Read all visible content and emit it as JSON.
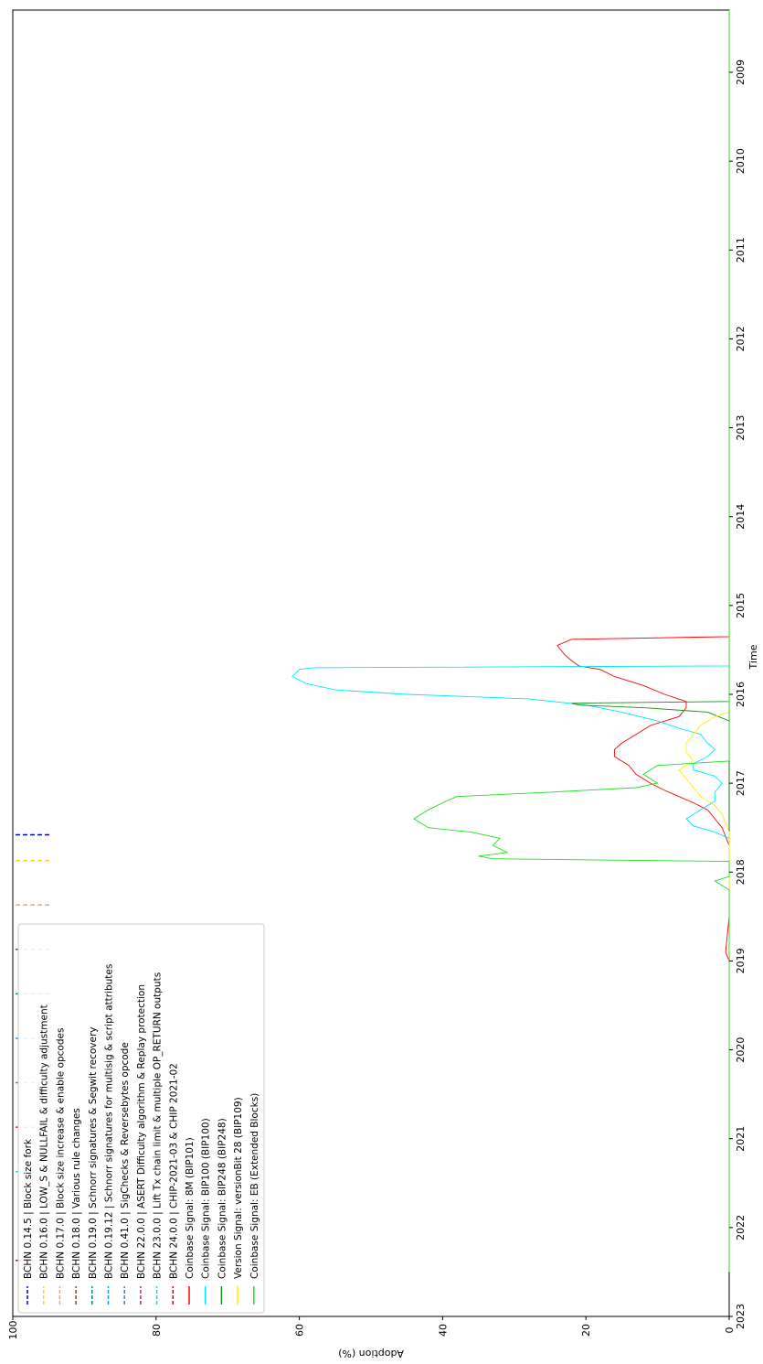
{
  "chart_data": {
    "type": "line",
    "title": "",
    "xlabel": "Time",
    "ylabel": "Adoption (%)",
    "xlim": [
      2008.3,
      2023.0
    ],
    "ylim": [
      0,
      100
    ],
    "x_ticks": [
      "2009",
      "2010",
      "2011",
      "2012",
      "2013",
      "2014",
      "2015",
      "2016",
      "2017",
      "2018",
      "2019",
      "2020",
      "2021",
      "2022",
      "2023"
    ],
    "y_ticks": [
      "0",
      "20",
      "40",
      "60",
      "80",
      "100"
    ],
    "grid": false,
    "orientation": "rotated 90° (time runs top-to-bottom along the right side)",
    "legend_position": "lower-left",
    "vertical_markers": [
      {
        "name": "BCHN 0.14.5 | Block size fork",
        "x": 2017.58,
        "color": "#0000cc"
      },
      {
        "name": "BCHN 0.16.0 | LOW_S & NULLFAIL & difficulty adjustment",
        "x": 2017.87,
        "color": "#ffd700"
      },
      {
        "name": "BCHN 0.17.0 | Block size increase & enable opcodes",
        "x": 2018.37,
        "color": "#f4a460"
      },
      {
        "name": "BCHN 0.18.0 | Various rule changes",
        "x": 2018.87,
        "color": "#8b4513"
      },
      {
        "name": "BCHN 0.19.0 | Schnorr signatures & Segwit recovery",
        "x": 2019.37,
        "color": "#008b8b"
      },
      {
        "name": "BCHN 0.19.12 | Schnorr signatures for multisig & script attributes",
        "x": 2019.87,
        "color": "#1e90ff"
      },
      {
        "name": "BCHN 0.41.0 | SigChecks & Reversebytes opcode",
        "x": 2020.37,
        "color": "#4682b4"
      },
      {
        "name": "BCHN 22.0.0 | ASERT Difficulty algorithm & Replay protection",
        "x": 2020.87,
        "color": "#d0208a"
      },
      {
        "name": "BCHN 23.0.0 | Lift Tx chain limit & multiple OP_RETURN outputs",
        "x": 2021.37,
        "color": "#00e5e5"
      },
      {
        "name": "BCHN 24.0.0 | CHIP-2021-03 & CHIP 2021-02",
        "x": 2022.37,
        "color": "#dd0000"
      }
    ],
    "series": [
      {
        "name": "Coinbase Signal: 8M (BIP101)",
        "color": "#ff0000",
        "points": [
          [
            2008.3,
            0
          ],
          [
            2015.35,
            0
          ],
          [
            2015.38,
            22
          ],
          [
            2015.45,
            24
          ],
          [
            2015.55,
            23
          ],
          [
            2015.62,
            22
          ],
          [
            2015.68,
            21
          ],
          [
            2015.72,
            18
          ],
          [
            2015.8,
            16
          ],
          [
            2015.9,
            12
          ],
          [
            2016.0,
            9
          ],
          [
            2016.08,
            6
          ],
          [
            2016.15,
            6
          ],
          [
            2016.25,
            7
          ],
          [
            2016.35,
            11
          ],
          [
            2016.45,
            13
          ],
          [
            2016.55,
            15
          ],
          [
            2016.62,
            16
          ],
          [
            2016.7,
            16
          ],
          [
            2016.8,
            14
          ],
          [
            2016.9,
            13
          ],
          [
            2017.0,
            11
          ],
          [
            2017.08,
            9
          ],
          [
            2017.15,
            7
          ],
          [
            2017.22,
            5
          ],
          [
            2017.3,
            3
          ],
          [
            2017.4,
            2
          ],
          [
            2017.5,
            1
          ],
          [
            2017.6,
            0.5
          ],
          [
            2017.7,
            0
          ],
          [
            2018.5,
            0
          ],
          [
            2018.9,
            0.5
          ],
          [
            2019.0,
            0
          ],
          [
            2022.5,
            0
          ]
        ]
      },
      {
        "name": "Coinbase Signal: BIP100 (BIP100)",
        "color": "#00e5ff",
        "points": [
          [
            2008.3,
            0
          ],
          [
            2015.68,
            0
          ],
          [
            2015.7,
            58
          ],
          [
            2015.72,
            60
          ],
          [
            2015.8,
            61
          ],
          [
            2015.88,
            59
          ],
          [
            2015.95,
            55
          ],
          [
            2016.0,
            45
          ],
          [
            2016.05,
            28
          ],
          [
            2016.12,
            20
          ],
          [
            2016.2,
            15
          ],
          [
            2016.3,
            10
          ],
          [
            2016.38,
            7
          ],
          [
            2016.45,
            4
          ],
          [
            2016.55,
            3
          ],
          [
            2016.62,
            2
          ],
          [
            2016.7,
            3
          ],
          [
            2016.78,
            5
          ],
          [
            2016.85,
            5
          ],
          [
            2016.92,
            2
          ],
          [
            2017.0,
            1
          ],
          [
            2017.1,
            2
          ],
          [
            2017.2,
            2
          ],
          [
            2017.3,
            4
          ],
          [
            2017.4,
            6
          ],
          [
            2017.48,
            5
          ],
          [
            2017.55,
            2
          ],
          [
            2017.62,
            0
          ],
          [
            2022.5,
            0
          ]
        ]
      },
      {
        "name": "Coinbase Signal: BIP248 (BIP248)",
        "color": "#1a8c1a",
        "points": [
          [
            2008.3,
            0
          ],
          [
            2016.08,
            0
          ],
          [
            2016.1,
            22
          ],
          [
            2016.12,
            21
          ],
          [
            2016.15,
            12
          ],
          [
            2016.2,
            3
          ],
          [
            2016.3,
            0
          ],
          [
            2022.5,
            0
          ]
        ]
      },
      {
        "name": "Version Signal: versionBit 28 (BIP109)",
        "color": "#ffee00",
        "points": [
          [
            2008.3,
            0
          ],
          [
            2016.2,
            0
          ],
          [
            2016.25,
            2
          ],
          [
            2016.35,
            4
          ],
          [
            2016.45,
            5
          ],
          [
            2016.55,
            6
          ],
          [
            2016.65,
            6
          ],
          [
            2016.75,
            5
          ],
          [
            2016.85,
            7
          ],
          [
            2016.95,
            6
          ],
          [
            2017.05,
            5
          ],
          [
            2017.15,
            4
          ],
          [
            2017.25,
            2
          ],
          [
            2017.35,
            1
          ],
          [
            2017.45,
            0.5
          ],
          [
            2017.55,
            0
          ],
          [
            2022.5,
            0
          ]
        ]
      },
      {
        "name": "Coinbase Signal: EB (Extended Blocks)",
        "color": "#22dd22",
        "points": [
          [
            2008.3,
            0
          ],
          [
            2016.75,
            0
          ],
          [
            2016.8,
            10
          ],
          [
            2016.9,
            12
          ],
          [
            2017.0,
            10
          ],
          [
            2017.05,
            13
          ],
          [
            2017.1,
            25
          ],
          [
            2017.15,
            38
          ],
          [
            2017.22,
            40
          ],
          [
            2017.3,
            42
          ],
          [
            2017.4,
            44
          ],
          [
            2017.5,
            42
          ],
          [
            2017.55,
            36
          ],
          [
            2017.62,
            32
          ],
          [
            2017.7,
            33
          ],
          [
            2017.78,
            31
          ],
          [
            2017.82,
            35
          ],
          [
            2017.85,
            33
          ],
          [
            2017.88,
            0
          ],
          [
            2018.05,
            0
          ],
          [
            2018.1,
            2
          ],
          [
            2018.15,
            1
          ],
          [
            2018.2,
            0
          ],
          [
            2022.5,
            0
          ]
        ]
      }
    ]
  }
}
